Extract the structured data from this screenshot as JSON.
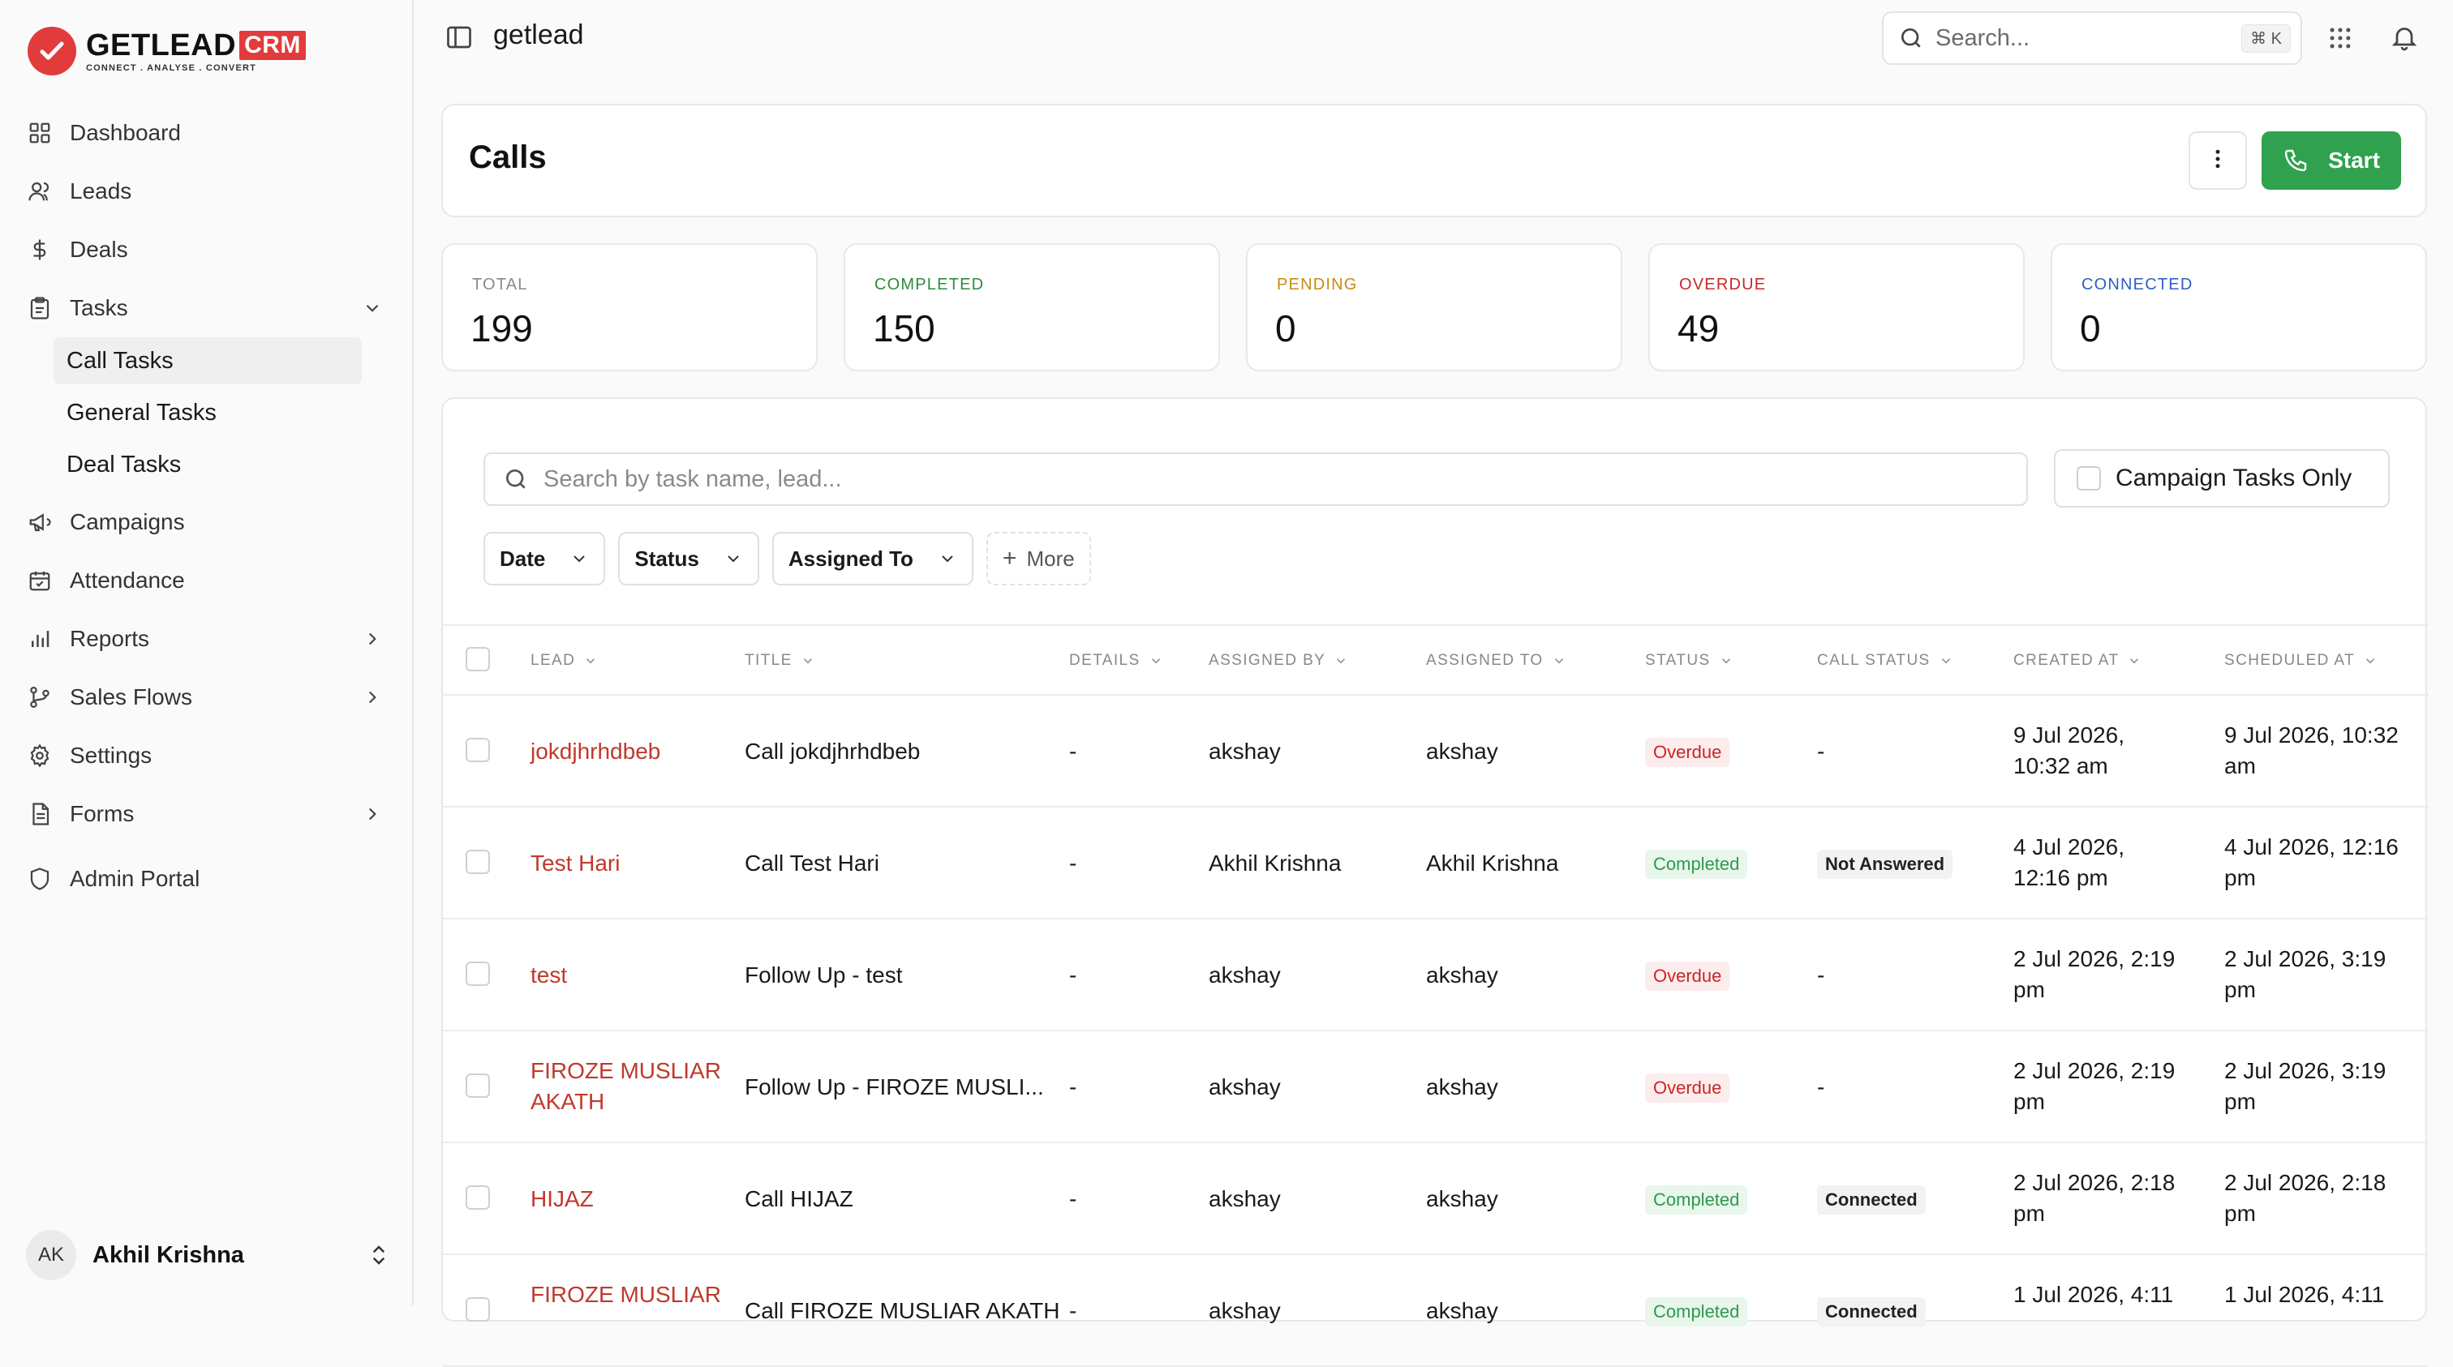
{
  "brand": {
    "name": "GETLEAD",
    "crm": "CRM",
    "tagline": "CONNECT  .  ANALYSE  .  CONVERT"
  },
  "sidebar": {
    "items": [
      {
        "label": "Dashboard",
        "icon": "grid-icon"
      },
      {
        "label": "Leads",
        "icon": "users-icon"
      },
      {
        "label": "Deals",
        "icon": "dollar-icon"
      },
      {
        "label": "Tasks",
        "icon": "clipboard-icon"
      },
      {
        "label": "Campaigns",
        "icon": "megaphone-icon"
      },
      {
        "label": "Attendance",
        "icon": "calendar-icon"
      },
      {
        "label": "Reports",
        "icon": "bar-chart-icon"
      },
      {
        "label": "Sales Flows",
        "icon": "flow-icon"
      },
      {
        "label": "Settings",
        "icon": "gear-icon"
      },
      {
        "label": "Forms",
        "icon": "document-icon"
      },
      {
        "label": "Admin Portal",
        "icon": "shield-icon"
      }
    ],
    "task_subitems": [
      "Call Tasks",
      "General Tasks",
      "Deal Tasks"
    ],
    "active_subitem": "Call Tasks",
    "user": {
      "initials": "AK",
      "name": "Akhil Krishna"
    }
  },
  "topbar": {
    "workspace": "getlead",
    "search_placeholder": "Search...",
    "shortcut": "⌘ K"
  },
  "header": {
    "title": "Calls",
    "start_label": "Start"
  },
  "stats": [
    {
      "label": "TOTAL",
      "value": "199",
      "color": "#8a8a8a"
    },
    {
      "label": "COMPLETED",
      "value": "150",
      "color": "#2e8b3e"
    },
    {
      "label": "PENDING",
      "value": "0",
      "color": "#c98a12"
    },
    {
      "label": "OVERDUE",
      "value": "49",
      "color": "#c62828"
    },
    {
      "label": "CONNECTED",
      "value": "0",
      "color": "#2f5fc4"
    }
  ],
  "filters": {
    "search_placeholder": "Search by task name, lead...",
    "campaign_only_label": "Campaign Tasks Only",
    "buttons": [
      "Date",
      "Status",
      "Assigned To"
    ],
    "more_label": "More"
  },
  "table": {
    "columns": [
      "LEAD",
      "TITLE",
      "DETAILS",
      "ASSIGNED BY",
      "ASSIGNED TO",
      "STATUS",
      "CALL STATUS",
      "CREATED AT",
      "SCHEDULED AT"
    ],
    "rows": [
      {
        "lead": "jokdjhrhdbeb",
        "title": "Call jokdjhrhdbeb",
        "details": "-",
        "assigned_by": "akshay",
        "assigned_to": "akshay",
        "status": "Overdue",
        "call_status": "-",
        "created": [
          "9 Jul 2026,",
          "10:32 am"
        ],
        "scheduled": [
          "9 Jul 2026, 10:32",
          "am"
        ]
      },
      {
        "lead": "Test Hari",
        "title": "Call Test Hari",
        "details": "-",
        "assigned_by": "Akhil Krishna",
        "assigned_to": "Akhil Krishna",
        "status": "Completed",
        "call_status": "Not Answered",
        "created": [
          "4 Jul 2026,",
          "12:16 pm"
        ],
        "scheduled": [
          "4 Jul 2026, 12:16",
          "pm"
        ]
      },
      {
        "lead": "test",
        "title": "Follow Up - test",
        "details": "-",
        "assigned_by": "akshay",
        "assigned_to": "akshay",
        "status": "Overdue",
        "call_status": "-",
        "created": [
          "2 Jul 2026, 2:19",
          "pm"
        ],
        "scheduled": [
          "2 Jul 2026, 3:19",
          "pm"
        ]
      },
      {
        "lead": [
          "FIROZE MUSLIAR",
          "AKATH"
        ],
        "title": "Follow Up - FIROZE MUSLI...",
        "details": "-",
        "assigned_by": "akshay",
        "assigned_to": "akshay",
        "status": "Overdue",
        "call_status": "-",
        "created": [
          "2 Jul 2026, 2:19",
          "pm"
        ],
        "scheduled": [
          "2 Jul 2026, 3:19",
          "pm"
        ]
      },
      {
        "lead": "HIJAZ",
        "title": "Call HIJAZ",
        "details": "-",
        "assigned_by": "akshay",
        "assigned_to": "akshay",
        "status": "Completed",
        "call_status": "Connected",
        "created": [
          "2 Jul 2026, 2:18",
          "pm"
        ],
        "scheduled": [
          "2 Jul 2026, 2:18",
          "pm"
        ]
      },
      {
        "lead": [
          "FIROZE MUSLIAR",
          ""
        ],
        "title": "Call FIROZE MUSLIAR AKATH",
        "details": "-",
        "assigned_by": "akshay",
        "assigned_to": "akshay",
        "status": "Completed",
        "call_status": "Connected",
        "created": [
          "1 Jul 2026, 4:11",
          ""
        ],
        "scheduled": [
          "1 Jul 2026, 4:11",
          ""
        ]
      }
    ]
  }
}
